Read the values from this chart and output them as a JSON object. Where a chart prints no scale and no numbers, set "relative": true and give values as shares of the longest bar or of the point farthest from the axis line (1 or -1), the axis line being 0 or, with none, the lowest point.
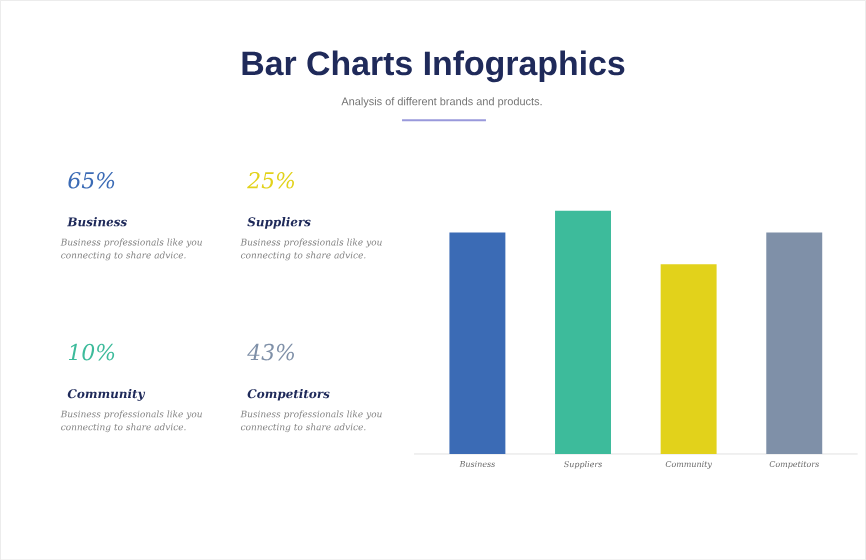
{
  "chart_data": {
    "type": "bar",
    "title": "Bar Charts Infographics",
    "subtitle": "Analysis of different brands and products.",
    "categories": [
      "Business",
      "Suppliers",
      "Community",
      "Competitors"
    ],
    "values": [
      0.91,
      1,
      0.78,
      0.91
    ],
    "colors": [
      "#3b6bb5",
      "#3dbb9b",
      "#e2d21b",
      "#7f90a8"
    ],
    "relative": true,
    "annotations": [
      "65%",
      "Business",
      "Business professionals like you connecting to share advice.",
      "25%",
      "Suppliers",
      "Business professionals like you connecting to share advice.",
      "10%",
      "Community",
      "Business professionals like you connecting to share advice.",
      "43%",
      "Competitors",
      "Business professionals like you connecting to share advice."
    ]
  }
}
